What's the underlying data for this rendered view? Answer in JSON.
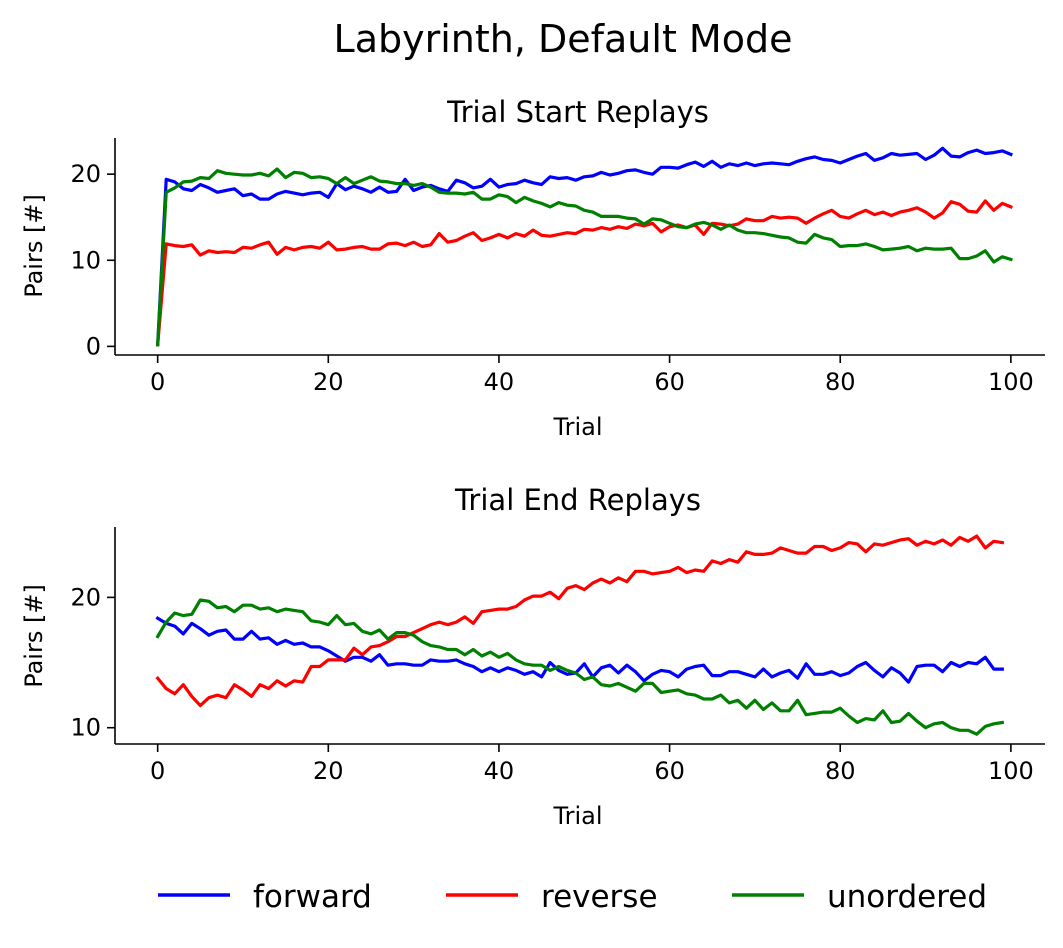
{
  "figure": {
    "title": "Labyrinth, Default Mode",
    "legend": {
      "placement": "bottom-center",
      "entries": [
        {
          "label": "forward",
          "color": "#0000ff"
        },
        {
          "label": "reverse",
          "color": "#ff0000"
        },
        {
          "label": "unordered",
          "color": "#008000"
        }
      ]
    }
  },
  "chart_data": [
    {
      "type": "line",
      "title": "Trial Start Replays",
      "xlabel": "Trial",
      "ylabel": "Pairs [#]",
      "xlim": [
        -5,
        104
      ],
      "ylim": [
        -1,
        24.2
      ],
      "xticks": [
        0,
        20,
        40,
        60,
        80,
        100
      ],
      "yticks": [
        0,
        10,
        20
      ],
      "grid": false,
      "series": [
        {
          "name": "forward",
          "color": "#0000ff",
          "values": [
            0.2,
            19.4,
            19.1,
            18.3,
            18.1,
            18.8,
            18.4,
            17.9,
            18.1,
            18.3,
            17.5,
            17.7,
            17.1,
            17.1,
            17.7,
            18.0,
            17.8,
            17.6,
            17.8,
            17.9,
            17.3,
            18.9,
            18.2,
            18.6,
            18.3,
            17.9,
            18.5,
            17.9,
            18.0,
            19.4,
            18.1,
            18.5,
            18.7,
            18.3,
            18.0,
            19.3,
            19.0,
            18.4,
            18.6,
            19.4,
            18.5,
            18.8,
            18.9,
            19.3,
            19.0,
            18.8,
            19.7,
            19.5,
            19.6,
            19.3,
            19.7,
            19.8,
            20.2,
            19.9,
            20.1,
            20.4,
            20.5,
            20.2,
            20.0,
            20.8,
            20.8,
            20.7,
            21.1,
            21.4,
            20.9,
            21.5,
            20.8,
            21.2,
            21.0,
            21.3,
            21.0,
            21.2,
            21.3,
            21.2,
            21.1,
            21.5,
            21.8,
            22.0,
            21.7,
            21.6,
            21.3,
            21.7,
            22.1,
            22.4,
            21.6,
            21.9,
            22.4,
            22.2,
            22.3,
            22.4,
            21.7,
            22.2,
            23.0,
            22.1,
            22.0,
            22.5,
            22.8,
            22.4,
            22.5,
            22.7,
            22.3
          ]
        },
        {
          "name": "reverse",
          "color": "#ff0000",
          "values": [
            0.2,
            11.9,
            11.7,
            11.6,
            11.8,
            10.6,
            11.1,
            10.9,
            11.0,
            10.9,
            11.5,
            11.4,
            11.8,
            12.1,
            10.7,
            11.5,
            11.2,
            11.5,
            11.6,
            11.4,
            12.1,
            11.2,
            11.3,
            11.5,
            11.6,
            11.3,
            11.3,
            11.9,
            12.0,
            11.7,
            12.1,
            11.6,
            11.8,
            13.1,
            12.1,
            12.3,
            12.8,
            13.2,
            12.3,
            12.6,
            13.0,
            12.6,
            13.1,
            12.8,
            13.5,
            12.9,
            12.8,
            13.0,
            13.2,
            13.1,
            13.6,
            13.5,
            13.8,
            13.6,
            13.9,
            13.7,
            14.2,
            14.0,
            14.3,
            13.3,
            13.9,
            14.1,
            13.8,
            14.1,
            13.0,
            14.3,
            14.2,
            14.0,
            14.2,
            14.8,
            14.6,
            14.6,
            15.1,
            14.9,
            15.0,
            14.9,
            14.3,
            14.9,
            15.4,
            15.8,
            15.1,
            14.9,
            15.4,
            15.8,
            15.3,
            15.6,
            15.2,
            15.6,
            15.8,
            16.1,
            15.6,
            14.9,
            15.5,
            16.8,
            16.5,
            15.7,
            15.6,
            16.9,
            15.8,
            16.6,
            16.2
          ]
        },
        {
          "name": "unordered",
          "color": "#008000",
          "values": [
            0.2,
            17.9,
            18.4,
            19.1,
            19.2,
            19.6,
            19.5,
            20.4,
            20.1,
            20.0,
            19.9,
            19.9,
            20.1,
            19.8,
            20.6,
            19.6,
            20.2,
            20.1,
            19.6,
            19.7,
            19.5,
            18.9,
            19.6,
            18.9,
            19.3,
            19.7,
            19.2,
            19.1,
            18.9,
            18.9,
            18.7,
            18.9,
            18.5,
            17.9,
            17.8,
            17.8,
            17.7,
            17.9,
            17.1,
            17.1,
            17.6,
            17.4,
            16.7,
            17.3,
            16.9,
            16.6,
            16.2,
            16.7,
            16.4,
            16.3,
            15.8,
            15.6,
            15.1,
            15.1,
            15.1,
            14.9,
            14.8,
            14.2,
            14.8,
            14.7,
            14.3,
            13.9,
            13.8,
            14.2,
            14.4,
            14.1,
            13.6,
            14.1,
            13.5,
            13.2,
            13.2,
            13.1,
            12.9,
            12.7,
            12.6,
            12.1,
            12.0,
            13.0,
            12.6,
            12.4,
            11.6,
            11.7,
            11.7,
            11.9,
            11.6,
            11.2,
            11.3,
            11.4,
            11.6,
            11.1,
            11.4,
            11.3,
            11.3,
            11.4,
            10.2,
            10.2,
            10.5,
            11.1,
            9.8,
            10.4,
            10.1
          ]
        }
      ]
    },
    {
      "type": "line",
      "title": "Trial End Replays",
      "xlabel": "Trial",
      "ylabel": "Pairs [#]",
      "xlim": [
        -5,
        104
      ],
      "ylim": [
        8.75,
        25.4
      ],
      "xticks": [
        0,
        20,
        40,
        60,
        80,
        100
      ],
      "yticks": [
        10,
        20
      ],
      "grid": false,
      "series": [
        {
          "name": "forward",
          "color": "#0000ff",
          "values": [
            18.4,
            18.0,
            17.8,
            17.2,
            18.0,
            17.6,
            17.1,
            17.4,
            17.5,
            16.8,
            16.8,
            17.4,
            16.8,
            16.9,
            16.4,
            16.7,
            16.4,
            16.5,
            16.2,
            16.2,
            15.9,
            15.5,
            15.1,
            15.4,
            15.4,
            15.1,
            15.6,
            14.8,
            14.9,
            14.9,
            14.8,
            14.8,
            15.2,
            15.1,
            15.1,
            15.2,
            14.9,
            14.7,
            14.3,
            14.6,
            14.3,
            14.6,
            14.4,
            14.1,
            14.3,
            13.9,
            15.0,
            14.4,
            14.1,
            14.2,
            14.9,
            13.9,
            14.6,
            14.8,
            14.2,
            14.8,
            14.3,
            13.6,
            14.1,
            14.4,
            14.3,
            13.9,
            14.5,
            14.7,
            14.8,
            14.0,
            14.0,
            14.3,
            14.3,
            14.1,
            13.9,
            14.5,
            13.9,
            14.2,
            14.4,
            13.8,
            14.9,
            14.1,
            14.1,
            14.3,
            14.0,
            14.2,
            14.7,
            15.0,
            14.4,
            13.9,
            14.6,
            14.2,
            13.5,
            14.7,
            14.8,
            14.8,
            14.3,
            15.0,
            14.7,
            15.0,
            14.9,
            15.4,
            14.5,
            14.5
          ]
        },
        {
          "name": "reverse",
          "color": "#ff0000",
          "values": [
            13.8,
            13.0,
            12.6,
            13.3,
            12.4,
            11.7,
            12.3,
            12.5,
            12.3,
            13.3,
            12.9,
            12.4,
            13.3,
            13.0,
            13.6,
            13.2,
            13.6,
            13.5,
            14.7,
            14.7,
            15.2,
            15.2,
            15.2,
            16.1,
            15.6,
            16.2,
            16.3,
            16.6,
            17.0,
            17.0,
            17.3,
            17.6,
            17.9,
            18.1,
            17.9,
            18.1,
            18.5,
            18.0,
            18.9,
            19.0,
            19.1,
            19.1,
            19.3,
            19.8,
            20.1,
            20.1,
            20.4,
            19.9,
            20.7,
            20.9,
            20.6,
            21.1,
            21.4,
            21.1,
            21.5,
            21.2,
            22.0,
            22.0,
            21.8,
            21.9,
            22.0,
            22.3,
            21.9,
            22.1,
            22.0,
            22.8,
            22.6,
            22.9,
            22.7,
            23.5,
            23.3,
            23.3,
            23.4,
            23.8,
            23.6,
            23.4,
            23.4,
            23.9,
            23.9,
            23.6,
            23.8,
            24.2,
            24.1,
            23.5,
            24.1,
            24.0,
            24.2,
            24.4,
            24.5,
            24.0,
            24.3,
            24.1,
            24.4,
            24.0,
            24.6,
            24.3,
            24.7,
            23.8,
            24.3,
            24.2
          ]
        },
        {
          "name": "unordered",
          "color": "#008000",
          "values": [
            17.0,
            18.1,
            18.8,
            18.6,
            18.7,
            19.8,
            19.7,
            19.2,
            19.3,
            18.9,
            19.4,
            19.4,
            19.1,
            19.2,
            18.9,
            19.1,
            19.0,
            18.9,
            18.2,
            18.1,
            17.9,
            18.6,
            17.9,
            18.0,
            17.4,
            17.2,
            17.5,
            16.8,
            17.3,
            17.3,
            17.1,
            16.6,
            16.3,
            16.2,
            16.0,
            16.0,
            15.6,
            16.0,
            15.5,
            15.8,
            15.4,
            15.7,
            15.2,
            14.9,
            14.8,
            14.8,
            14.4,
            14.7,
            14.4,
            14.2,
            13.7,
            13.9,
            13.3,
            13.2,
            13.4,
            13.1,
            12.8,
            13.4,
            13.4,
            12.7,
            12.8,
            12.9,
            12.6,
            12.5,
            12.2,
            12.2,
            12.5,
            11.9,
            12.1,
            11.5,
            12.1,
            11.4,
            11.9,
            11.3,
            11.3,
            12.1,
            11.0,
            11.1,
            11.2,
            11.2,
            11.5,
            10.9,
            10.4,
            10.7,
            10.6,
            11.3,
            10.4,
            10.5,
            11.1,
            10.5,
            10.0,
            10.3,
            10.4,
            10.0,
            9.8,
            9.8,
            9.5,
            10.1,
            10.3,
            10.4
          ]
        }
      ]
    }
  ]
}
